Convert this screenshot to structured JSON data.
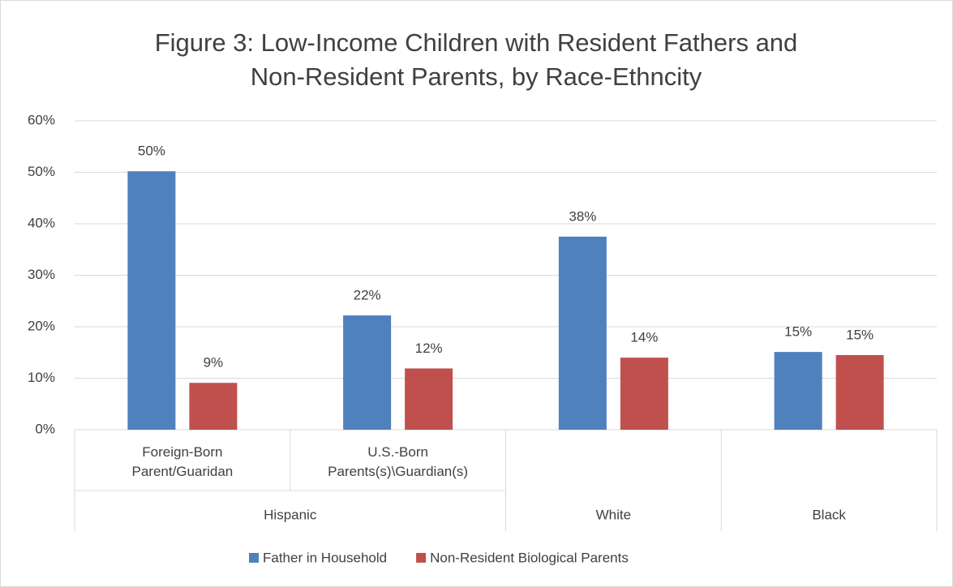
{
  "chart_data": {
    "type": "bar",
    "title": "Figure 3: Low-Income Children with Resident Fathers and Non-Resident Parents, by Race-Ethncity",
    "categories": [
      "Foreign-Born Parent/Guaridan",
      "U.S.-Born Parents(s)\\Guardian(s)",
      null,
      null
    ],
    "groups": [
      {
        "name": "Hispanic",
        "count": 2
      },
      {
        "name": "White",
        "count": 1
      },
      {
        "name": "Black",
        "count": 1
      }
    ],
    "series": [
      {
        "name": "Father in Household",
        "color": "#4f81bd",
        "values": [
          50.2,
          22.2,
          37.5,
          15.1
        ],
        "value_labels": [
          "50%",
          "22%",
          "38%",
          "15%"
        ]
      },
      {
        "name": "Non-Resident Biological Parents",
        "color": "#c0504d",
        "values": [
          9.1,
          11.9,
          14.0,
          14.5
        ],
        "value_labels": [
          "9%",
          "12%",
          "14%",
          "15%"
        ]
      }
    ],
    "ylim": [
      0,
      60
    ],
    "yticks": [
      {
        "value": 0,
        "label": "0%"
      },
      {
        "value": 10,
        "label": "10%"
      },
      {
        "value": 20,
        "label": "20%"
      },
      {
        "value": 30,
        "label": "30%"
      },
      {
        "value": 40,
        "label": "40%"
      },
      {
        "value": 50,
        "label": "50%"
      },
      {
        "value": 60,
        "label": "60%"
      }
    ],
    "grid": true,
    "legend": "bottom"
  }
}
